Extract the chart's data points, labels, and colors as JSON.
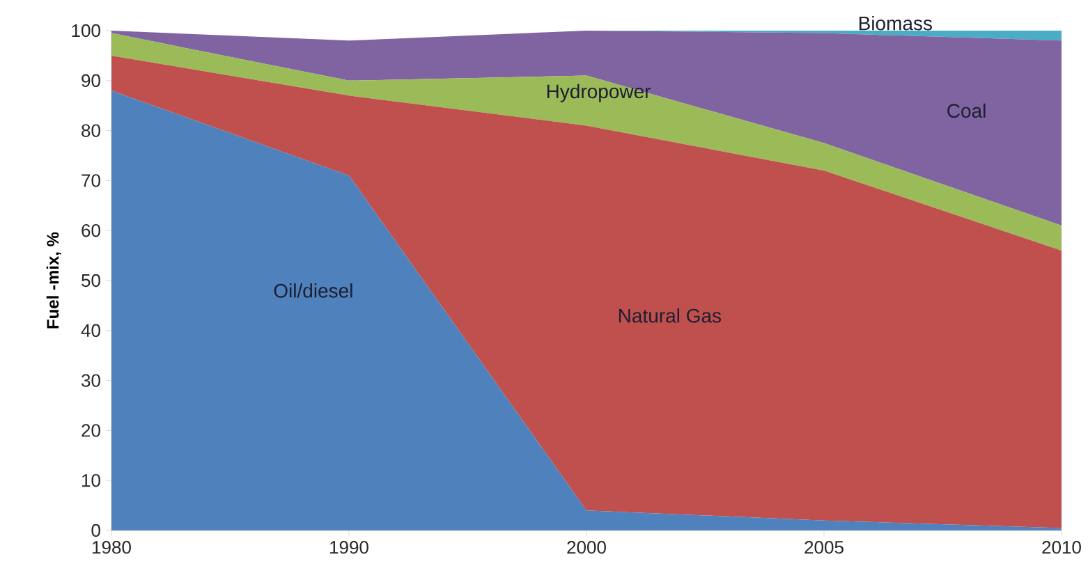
{
  "chart_data": {
    "type": "area",
    "stacked": true,
    "ylabel": "Fuel -mix, %",
    "categories": [
      "1980",
      "1990",
      "2000",
      "2005",
      "2010"
    ],
    "ylim": [
      0,
      100
    ],
    "yticks": [
      0,
      10,
      20,
      30,
      40,
      50,
      60,
      70,
      80,
      90,
      100
    ],
    "series": [
      {
        "name": "Oil/diesel",
        "color": "#4f81bd",
        "values": [
          88,
          71,
          4,
          2,
          0.5
        ]
      },
      {
        "name": "Natural Gas",
        "color": "#c0504d",
        "values": [
          7,
          16,
          77,
          70,
          55.5
        ]
      },
      {
        "name": "Hydropower",
        "color": "#9bbb59",
        "values": [
          4.5,
          3,
          10,
          5.5,
          5
        ]
      },
      {
        "name": "Coal",
        "color": "#8064a2",
        "values": [
          0.5,
          8,
          9,
          22,
          37
        ]
      },
      {
        "name": "Biomass",
        "color": "#4bacc6",
        "values": [
          0,
          0,
          0,
          0.5,
          2
        ]
      }
    ]
  }
}
